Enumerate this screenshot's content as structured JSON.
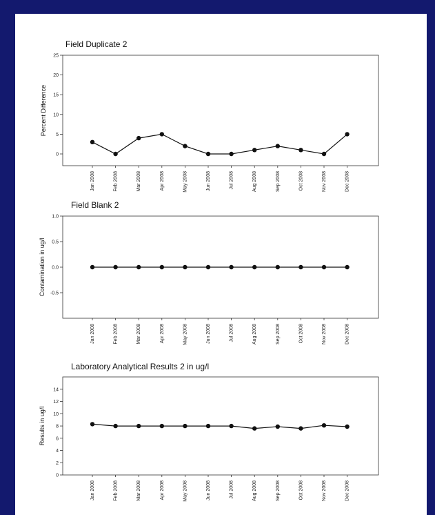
{
  "chart_data": [
    {
      "type": "line",
      "title": "Field Duplicate 2",
      "title_color": "#111111",
      "ylabel": "Percent Difference",
      "categories": [
        "Jan 2008",
        "Feb 2008",
        "Mar 2008",
        "Apr 2008",
        "May 2008",
        "Jun 2008",
        "Jul 2008",
        "Aug 2008",
        "Sep 2008",
        "Oct 2008",
        "Nov 2008",
        "Dec 2008"
      ],
      "values": [
        3,
        0,
        4,
        5,
        2,
        0,
        0,
        1,
        2,
        1,
        0,
        5
      ],
      "ylim": [
        0,
        25
      ],
      "yticks": [
        0,
        5,
        10,
        15,
        20,
        25
      ],
      "ytick_labels": [
        "0",
        "5",
        "10",
        "15",
        "20",
        "25"
      ]
    },
    {
      "type": "line",
      "title": "Field Blank 2",
      "title_color": "#1a8a3a",
      "ylabel": "Contamination in ug/l",
      "categories": [
        "Jan 2008",
        "Feb 2008",
        "Mar 2008",
        "Apr 2008",
        "May 2008",
        "Jun 2008",
        "Jul 2008",
        "Aug 2008",
        "Sep 2008",
        "Oct 2008",
        "Nov 2008",
        "Dec 2008"
      ],
      "values": [
        0,
        0,
        0,
        0,
        0,
        0,
        0,
        0,
        0,
        0,
        0,
        0
      ],
      "ylim": [
        -1.0,
        1.0
      ],
      "yticks": [
        -0.5,
        0.0,
        0.5,
        1.0
      ],
      "ytick_labels": [
        "-0.5",
        "0.0",
        "0.5",
        "1.0"
      ]
    },
    {
      "type": "line",
      "title": "Laboratory Analytical Results 2 in ug/l",
      "title_color": "#111111",
      "ylabel": "Results in ug/l",
      "categories": [
        "Jan 2008",
        "Feb 2008",
        "Mar 2008",
        "Apr 2008",
        "May 2008",
        "Jun 2008",
        "Jul 2008",
        "Aug 2008",
        "Sep 2008",
        "Oct 2008",
        "Nov 2008",
        "Dec 2008"
      ],
      "values": [
        8.3,
        8.0,
        8.0,
        8.0,
        8.0,
        8.0,
        8.0,
        7.6,
        7.9,
        7.6,
        8.1,
        7.9
      ],
      "ylim": [
        0,
        15
      ],
      "yticks": [
        0,
        2,
        4,
        6,
        8,
        10,
        12,
        14
      ],
      "ytick_labels": [
        "0",
        "2",
        "4",
        "6",
        "8",
        "10",
        "12",
        "14"
      ]
    }
  ],
  "colors": {
    "background": "#13196e",
    "panel": "#ffffff",
    "marker": "#111111"
  }
}
